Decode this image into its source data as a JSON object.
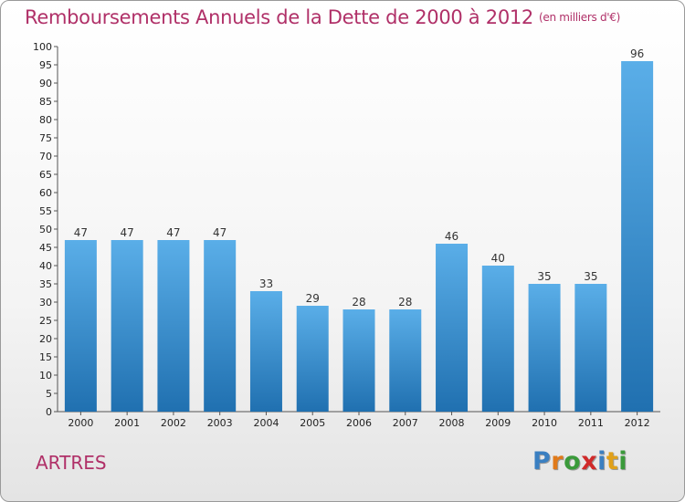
{
  "title": "Remboursements Annuels de la Dette de 2000 à 2012",
  "subtitle": "(en milliers d'€)",
  "commune": "ARTRES",
  "logo": {
    "letters": [
      "P",
      "r",
      "o",
      "x",
      "i",
      "t",
      "i"
    ],
    "colors": [
      "#3a7fc1",
      "#e07a1a",
      "#3a9a3a",
      "#d02a2a",
      "#3a7fc1",
      "#e0a01a",
      "#3a9a3a"
    ]
  },
  "colors": {
    "title": "#b03068",
    "bar_light": "#5aaee8",
    "bar_dark": "#2070b0"
  },
  "chart_data": {
    "type": "bar",
    "title": "Remboursements Annuels de la Dette de 2000 à 2012",
    "categories": [
      "2000",
      "2001",
      "2002",
      "2003",
      "2004",
      "2005",
      "2006",
      "2007",
      "2008",
      "2009",
      "2010",
      "2011",
      "2012"
    ],
    "values": [
      47,
      47,
      47,
      47,
      33,
      29,
      28,
      28,
      46,
      40,
      35,
      35,
      96
    ],
    "ylim": [
      0,
      100
    ],
    "yticks": [
      0,
      5,
      10,
      15,
      20,
      25,
      30,
      35,
      40,
      45,
      50,
      55,
      60,
      65,
      70,
      75,
      80,
      85,
      90,
      95,
      100
    ],
    "grid": false,
    "data_labels": true
  }
}
